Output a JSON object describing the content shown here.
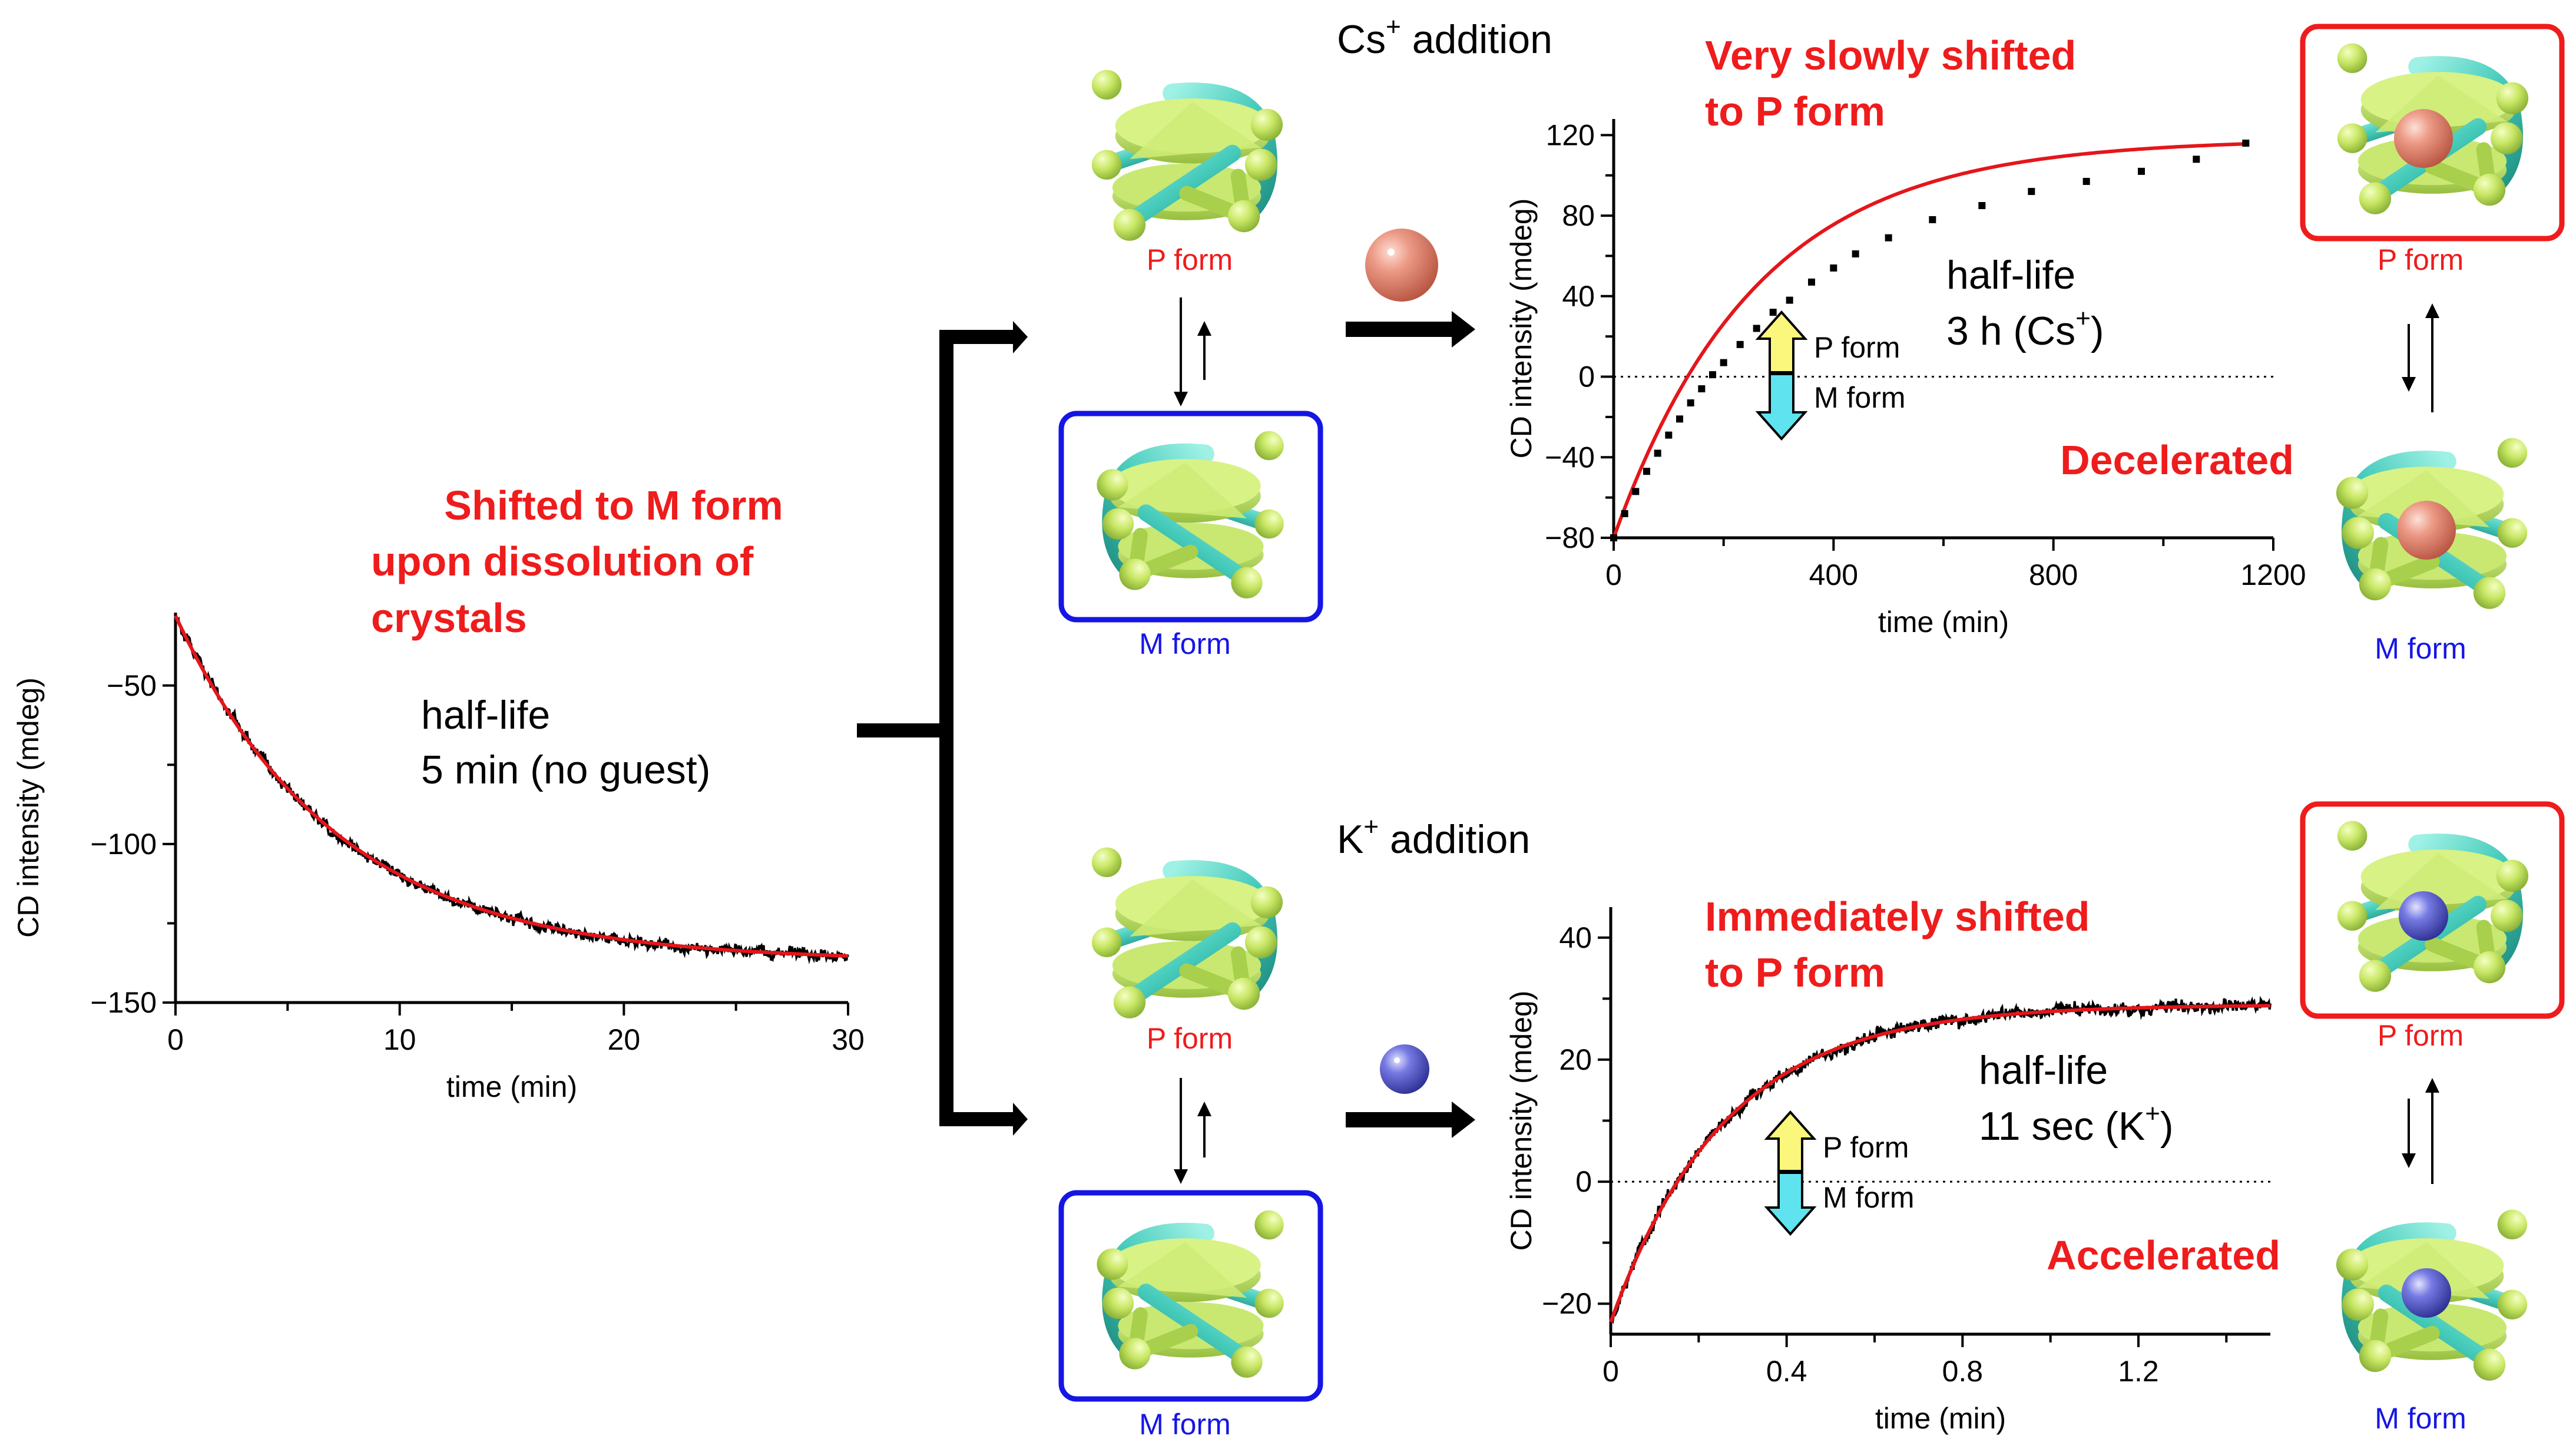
{
  "colors": {
    "red": "#ee1c1c",
    "blue": "#1515e6",
    "black": "#000000",
    "fit_red": "#e4161b",
    "cage_green": "#c6e66a",
    "cage_dark": "#8fb63c",
    "cage_cyan": "#4dd3c4",
    "cs_ball": "#e9907c",
    "k_ball": "#6c6fd8",
    "arrow_yellow": "#fbf67c",
    "arrow_cyan": "#5fe3ef"
  },
  "texts": {
    "cs_addition": "Cs",
    "cs_sup": "+",
    "cs_addition_rest": " addition",
    "k_addition": "K",
    "k_sup": "+",
    "k_addition_rest": " addition",
    "shifted_m_line1": "Shifted to M form",
    "shifted_m_line2": "upon dissolution of",
    "shifted_m_line3": "crystals",
    "halflife_label": "half-life",
    "halflife_noguest": "5 min (no guest)",
    "very_slowly_line1": "Very slowly shifted",
    "very_slowly_line2": "to P form",
    "halflife_cs_value": "3 h (Cs",
    "halflife_cs_sup": "+",
    "halflife_cs_close": ")",
    "decelerated": "Decelerated",
    "immediately_line1": "Immediately shifted",
    "immediately_line2": "to P form",
    "halflife_k_value": "11 sec (K",
    "halflife_k_sup": "+",
    "halflife_k_close": ")",
    "accelerated": "Accelerated",
    "p_form": "P form",
    "m_form": "M form"
  },
  "icons": {
    "cage": "cage-molecule-icon",
    "cs_ion": "cs-ion-sphere-icon",
    "k_ion": "k-ion-sphere-icon",
    "double_arrow": "p-m-double-arrow-icon"
  },
  "chart_data": [
    {
      "id": "no-guest",
      "type": "line",
      "xlabel": "time (min)",
      "ylabel": "CD intensity (mdeg)",
      "xlim": [
        0,
        30
      ],
      "ylim": [
        -150,
        -27
      ],
      "xticks": [
        0,
        10,
        20,
        30
      ],
      "yticks": [
        -150,
        -100,
        -50
      ],
      "series": [
        {
          "kind": "noisy-data",
          "model": {
            "y0": -28,
            "yinf": -137,
            "halflife": 5
          }
        },
        {
          "kind": "fit",
          "model": {
            "y0": -28,
            "yinf": -137,
            "halflife": 5
          }
        }
      ]
    },
    {
      "id": "cs",
      "type": "scatter",
      "xlabel": "time (min)",
      "ylabel": "CD intensity (mdeg)",
      "xlim": [
        0,
        1200
      ],
      "ylim": [
        -80,
        128
      ],
      "xticks": [
        0,
        400,
        800,
        1200
      ],
      "yticks": [
        -80,
        -40,
        0,
        40,
        80,
        120
      ],
      "zero_line": true,
      "x": [
        0,
        20,
        40,
        60,
        80,
        100,
        120,
        140,
        160,
        180,
        200,
        230,
        260,
        290,
        320,
        360,
        400,
        440,
        500,
        580,
        670,
        760,
        860,
        960,
        1060,
        1150
      ],
      "y": [
        -80,
        -68,
        -57,
        -47,
        -38,
        -29,
        -21,
        -13,
        -6,
        1,
        7,
        16,
        24,
        32,
        38,
        47,
        54,
        61,
        69,
        78,
        85,
        92,
        97,
        102,
        108,
        116
      ],
      "fit": {
        "y0": -80,
        "yinf": 118,
        "halflife": 180
      }
    },
    {
      "id": "k",
      "type": "line",
      "xlabel": "time (min)",
      "ylabel": "CD intensity (mdeg)",
      "xlim": [
        0,
        1.5
      ],
      "ylim": [
        -25,
        45
      ],
      "xticks": [
        0,
        0.4,
        0.8,
        1.2
      ],
      "yticks": [
        -20,
        0,
        20,
        40
      ],
      "zero_line": true,
      "series": [
        {
          "kind": "noisy-data",
          "model": {
            "y0": -23,
            "yinf": 29,
            "halflife": 0.18
          }
        },
        {
          "kind": "fit",
          "model": {
            "y0": -23,
            "yinf": 29,
            "halflife": 0.18
          }
        }
      ]
    }
  ]
}
